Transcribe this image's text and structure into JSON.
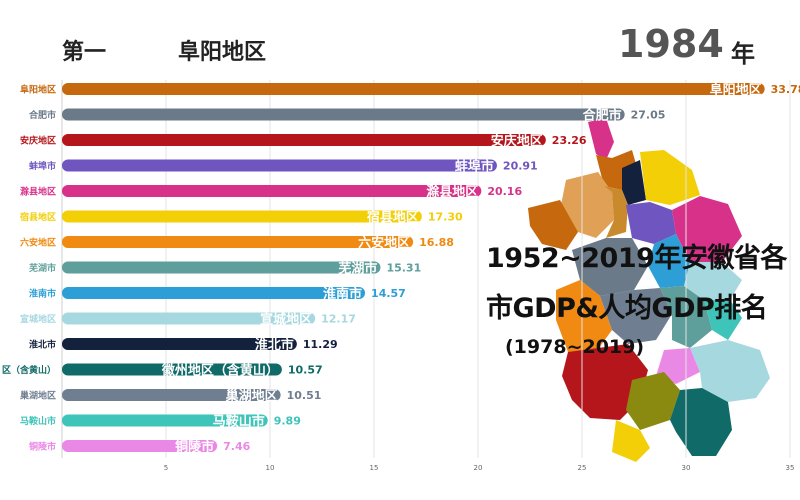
{
  "header": {
    "rank_label": "第一",
    "leader_name": "阜阳地区",
    "year": "1984",
    "year_unit": "年"
  },
  "overlay": {
    "title_line1": "1952~2019年安徽省各",
    "title_line2": "市GDP&人均GDP排名",
    "subtitle": "(1978~2019)"
  },
  "chart_data": {
    "type": "bar",
    "orientation": "horizontal",
    "categories": [
      "阜阳地区",
      "合肥市",
      "安庆地区",
      "蚌埠市",
      "滁县地区",
      "宿县地区",
      "六安地区",
      "芜湖市",
      "淮南市",
      "宣城地区",
      "淮北市",
      "徽州地区（含黄山）",
      "巢湖地区",
      "马鞍山市",
      "铜陵市"
    ],
    "display_labels": [
      "阜阳地区",
      "合肥市",
      "安庆地区",
      "蚌埠市",
      "滁县地区",
      "宿县地区",
      "六安地区",
      "芜湖市",
      "淮南市",
      "宣城地区",
      "淮北市",
      "区（含黄山）",
      "巢湖地区",
      "马鞍山市",
      "铜陵市"
    ],
    "bar_labels": [
      "阜阳地区",
      "合肥市",
      "安庆地区",
      "蚌埠市",
      "滁县地区",
      "宿县地区",
      "六安地区",
      "芜湖市",
      "淮南市",
      "宣城地区",
      "淮北市",
      "徽州地区（含黄山）",
      "巢湖地区",
      "马鞍山市",
      "铜陵市"
    ],
    "values": [
      33.78,
      27.05,
      23.26,
      20.91,
      20.16,
      17.3,
      16.88,
      15.31,
      14.57,
      12.17,
      11.29,
      10.57,
      10.51,
      9.89,
      7.46
    ],
    "value_labels": [
      "33.78",
      "27.05",
      "23.26",
      "20.91",
      "20.16",
      "17.30",
      "16.88",
      "15.31",
      "14.57",
      "12.17",
      "11.29",
      "10.57",
      "10.51",
      "9.89",
      "7.46"
    ],
    "colors": [
      "#c5680e",
      "#6b7a89",
      "#b5161c",
      "#6f55bf",
      "#d8318a",
      "#f2cf07",
      "#f08a12",
      "#5e9e9b",
      "#2e9fd6",
      "#a6d8e0",
      "#13213d",
      "#0f6a68",
      "#6f7f91",
      "#3ec4b8",
      "#ea88e6"
    ],
    "x_ticks": [
      "5",
      "10",
      "15",
      "20",
      "25",
      "30",
      "35"
    ],
    "xlim": [
      0,
      35
    ],
    "grid": true
  }
}
